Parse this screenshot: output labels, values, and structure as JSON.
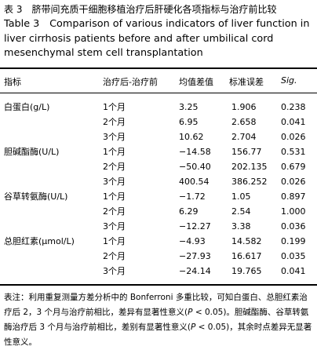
{
  "title_cn": "表 3　脐带间充质干细胞移植治疗后肝硬化各项指标与治疗前比较",
  "title_en": "Table 3　Comparison of various indicators of liver function in liver cirrhosis patients before and after umbilical cord mesenchymal stem cell transplantation",
  "headers": {
    "indicator": "指标",
    "comparison": "治疗后-治疗前",
    "mean_diff": "均值差值",
    "std_err": "标准误差",
    "sig": "Sig."
  },
  "rows": [
    {
      "indicator": "白蛋白(g/L)",
      "time": "1个月",
      "mean": "3.25",
      "se": "1.906",
      "sig": "0.238"
    },
    {
      "indicator": "",
      "time": "2个月",
      "mean": "6.95",
      "se": "2.658",
      "sig": "0.041"
    },
    {
      "indicator": "",
      "time": "3个月",
      "mean": "10.62",
      "se": "2.704",
      "sig": "0.026"
    },
    {
      "indicator": "胆碱酯酶(U/L)",
      "time": "1个月",
      "mean": "−14.58",
      "se": "156.77",
      "sig": "0.531"
    },
    {
      "indicator": "",
      "time": "2个月",
      "mean": "−50.40",
      "se": "202.135",
      "sig": "0.679"
    },
    {
      "indicator": "",
      "time": "3个月",
      "mean": "400.54",
      "se": "386.252",
      "sig": "0.026"
    },
    {
      "indicator": "谷草转氨酶(U/L)",
      "time": "1个月",
      "mean": "−1.72",
      "se": "1.05",
      "sig": "0.897"
    },
    {
      "indicator": "",
      "time": "2个月",
      "mean": "6.29",
      "se": "2.54",
      "sig": "1.000"
    },
    {
      "indicator": "",
      "time": "3个月",
      "mean": "−12.27",
      "se": "3.38",
      "sig": "0.036"
    },
    {
      "indicator": "总胆红素(μmol/L)",
      "time": "1个月",
      "mean": "−4.93",
      "se": "14.582",
      "sig": "0.199"
    },
    {
      "indicator": "",
      "time": "2个月",
      "mean": "−27.93",
      "se": "16.617",
      "sig": "0.035"
    },
    {
      "indicator": "",
      "time": "3个月",
      "mean": "−24.14",
      "se": "19.765",
      "sig": "0.041"
    }
  ],
  "note": {
    "part1": "表注：利用重复测量方差分析中的 Bonferroni 多重比较，可知白蛋白、总胆红素治疗后 2，3 个月与治疗前相比，差异有显著性意义(",
    "p1": "P",
    "part2": " < 0.05)。胆碱酯酶、谷草转氨酶治疗后 3 个月与治疗前相比，差别有显著性意义(",
    "p2": "P",
    "part3": " < 0.05)，其余时点差异无显著性意义。"
  }
}
